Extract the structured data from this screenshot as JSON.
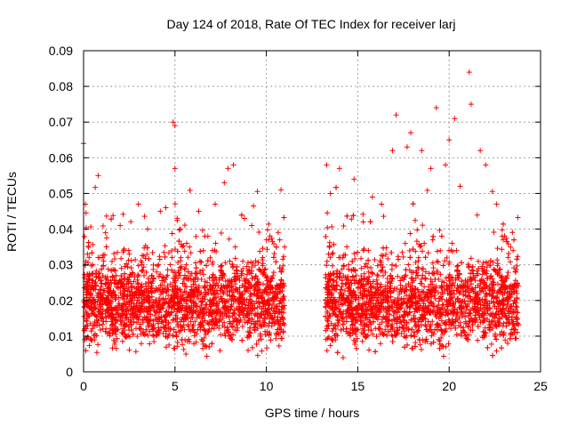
{
  "chart_data": {
    "type": "scatter",
    "title": "Day 124 of 2018, Rate Of TEC Index for receiver larj",
    "xlabel": "GPS time / hours",
    "ylabel": "ROTI / TECUs",
    "xlim": [
      0,
      25
    ],
    "ylim": [
      0,
      0.09
    ],
    "xticks": [
      0,
      5,
      10,
      15,
      20,
      25
    ],
    "xtick_labels": [
      "0",
      "5",
      "10",
      "15",
      "20",
      "25"
    ],
    "yticks": [
      0,
      0.01,
      0.02,
      0.03,
      0.04,
      0.05,
      0.06,
      0.07,
      0.08,
      0.09
    ],
    "ytick_labels": [
      "0",
      "0.01",
      "0.02",
      "0.03",
      "0.04",
      "0.05",
      "0.06",
      "0.07",
      "0.08",
      "0.09"
    ],
    "grid": true,
    "marker": "+",
    "color": "#ff0000",
    "series": [
      {
        "name": "ROTI",
        "x": [
          0.0,
          0.05,
          0.1,
          0.2,
          0.3,
          0.5,
          0.6,
          0.8,
          1.0,
          1.2,
          1.5,
          1.7,
          2.0,
          2.3,
          2.5,
          2.8,
          3.0,
          3.3,
          3.5,
          3.8,
          4.0,
          4.2,
          4.5,
          4.8,
          4.9,
          5.0,
          5.0,
          5.1,
          5.3,
          5.5,
          5.6,
          5.8,
          6.0,
          6.3,
          6.5,
          6.8,
          7.0,
          7.2,
          7.5,
          7.7,
          7.9,
          8.0,
          8.2,
          8.5,
          8.8,
          9.0,
          9.2,
          9.5,
          9.8,
          10.0,
          10.3,
          10.6,
          10.8,
          11.0,
          13.3,
          13.5,
          13.8,
          14.0,
          14.2,
          14.5,
          14.8,
          15.0,
          15.3,
          15.5,
          15.8,
          16.0,
          16.3,
          16.6,
          16.9,
          17.1,
          17.4,
          17.7,
          17.9,
          18.2,
          18.5,
          18.8,
          19.0,
          19.3,
          19.6,
          19.8,
          20.0,
          20.3,
          20.6,
          20.9,
          21.1,
          21.2,
          21.4,
          21.7,
          22.0,
          22.3,
          22.6,
          22.9,
          23.2,
          23.5,
          23.7,
          0.3,
          1.1,
          2.6,
          4.1,
          6.1,
          8.3,
          9.9,
          13.6,
          15.6,
          17.6,
          19.1,
          20.4,
          21.8,
          23.3
        ],
        "y": [
          0.064,
          0.012,
          0.047,
          0.016,
          0.02,
          0.03,
          0.014,
          0.055,
          0.021,
          0.039,
          0.018,
          0.025,
          0.041,
          0.013,
          0.033,
          0.022,
          0.047,
          0.017,
          0.04,
          0.012,
          0.028,
          0.045,
          0.046,
          0.02,
          0.07,
          0.069,
          0.057,
          0.019,
          0.04,
          0.026,
          0.005,
          0.035,
          0.018,
          0.045,
          0.014,
          0.038,
          0.012,
          0.047,
          0.021,
          0.053,
          0.057,
          0.031,
          0.058,
          0.016,
          0.043,
          0.006,
          0.041,
          0.018,
          0.032,
          0.037,
          0.015,
          0.024,
          0.051,
          0.035,
          0.058,
          0.05,
          0.012,
          0.057,
          0.004,
          0.03,
          0.054,
          0.018,
          0.042,
          0.013,
          0.049,
          0.022,
          0.047,
          0.015,
          0.062,
          0.072,
          0.019,
          0.063,
          0.067,
          0.013,
          0.062,
          0.021,
          0.057,
          0.074,
          0.016,
          0.058,
          0.065,
          0.071,
          0.052,
          0.019,
          0.084,
          0.075,
          0.015,
          0.062,
          0.058,
          0.014,
          0.047,
          0.038,
          0.008,
          0.034,
          0.022,
          0.025,
          0.031,
          0.027,
          0.03,
          0.026,
          0.035,
          0.02,
          0.033,
          0.028,
          0.036,
          0.037,
          0.034,
          0.029,
          0.024
        ]
      }
    ]
  }
}
